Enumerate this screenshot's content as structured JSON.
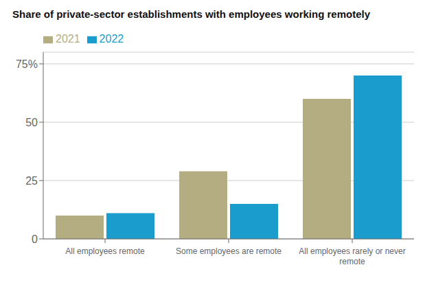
{
  "chart_data": {
    "type": "bar",
    "title": "Share of private-sector establishments with employees working remotely",
    "categories": [
      "All employees remote",
      "Some employees are remote",
      "All employees rarely or never\nremote"
    ],
    "series": [
      {
        "name": "2021",
        "color": "#b5ad82",
        "values": [
          10,
          29,
          60
        ]
      },
      {
        "name": "2022",
        "color": "#1a9dcc",
        "values": [
          11,
          15,
          70
        ]
      }
    ],
    "ylim": [
      0,
      80
    ],
    "yticks": [
      0,
      25,
      50,
      {
        "value": 75,
        "label": "75%"
      }
    ],
    "grid": true,
    "legend": "top-left"
  }
}
